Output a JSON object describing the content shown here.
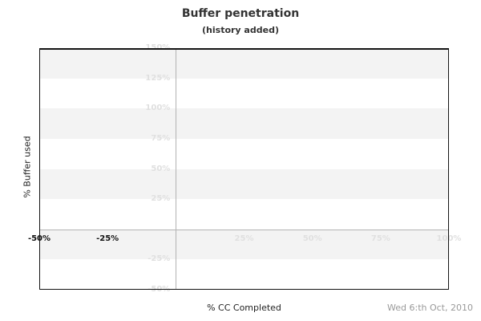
{
  "header": {
    "title": "Buffer penetration",
    "subtitle": "(history added)"
  },
  "axes": {
    "y_label": "% Buffer used",
    "x_label": "% CC Completed"
  },
  "footer": {
    "date": "Wed 6:th Oct, 2010"
  },
  "chart_data": {
    "type": "line",
    "title": "Buffer penetration",
    "subtitle": "(history added)",
    "xlabel": "% CC Completed",
    "ylabel": "% Buffer used",
    "xlim": [
      -50,
      100
    ],
    "ylim": [
      -50,
      150
    ],
    "x_ticks": [
      {
        "value": -50,
        "label": "-50%",
        "style": "dark"
      },
      {
        "value": -25,
        "label": "-25%",
        "style": "dark"
      },
      {
        "value": 25,
        "label": "25%",
        "style": "faint"
      },
      {
        "value": 50,
        "label": "50%",
        "style": "faint"
      },
      {
        "value": 75,
        "label": "75%",
        "style": "faint"
      },
      {
        "value": 100,
        "label": "100%",
        "style": "faint"
      }
    ],
    "y_ticks": [
      {
        "value": 150,
        "label": "150%"
      },
      {
        "value": 125,
        "label": "125%"
      },
      {
        "value": 100,
        "label": "100%"
      },
      {
        "value": 75,
        "label": "75%"
      },
      {
        "value": 50,
        "label": "50%"
      },
      {
        "value": 25,
        "label": "25%"
      },
      {
        "value": -25,
        "label": "-25%"
      },
      {
        "value": -50,
        "label": "-50%"
      }
    ],
    "bands": [
      [
        150,
        125
      ],
      [
        100,
        75
      ],
      [
        50,
        25
      ],
      [
        0,
        -25
      ]
    ],
    "zero_axes_cross": {
      "x": 0,
      "y": 0
    },
    "series": [],
    "legend_position": "none",
    "annotation": "Wed 6:th Oct, 2010"
  },
  "colors": {
    "band": "#f3f3f3",
    "faint_label": "#e0e0e0",
    "axis_line": "#b3b3b3",
    "border": "#151515",
    "dark_label": "#111111",
    "title": "#333333",
    "text": "#222222",
    "date_text": "#999999"
  }
}
